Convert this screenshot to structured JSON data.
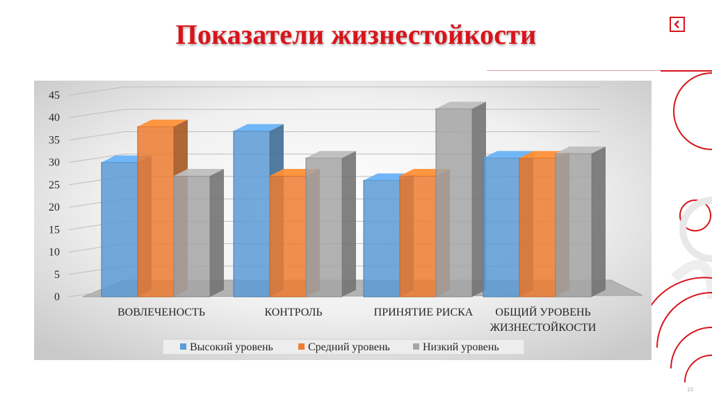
{
  "slide": {
    "title": "Показатели жизнестойкости",
    "page_number": "10",
    "accent_color": "#d8141b",
    "back_icon": "back-arrow-icon"
  },
  "chart_data": {
    "type": "bar",
    "title": "",
    "xlabel": "",
    "ylabel": "",
    "ylim": [
      0,
      45
    ],
    "y_ticks": [
      0,
      5,
      10,
      15,
      20,
      25,
      30,
      35,
      40,
      45
    ],
    "categories": [
      [
        "ВОВЛЕЧЕНОСТЬ"
      ],
      [
        "КОНТРОЛЬ"
      ],
      [
        "ПРИНЯТИЕ РИСКА"
      ],
      [
        "ОБЩИЙ УРОВЕНЬ",
        "ЖИЗНЕСТОЙКОСТИ"
      ]
    ],
    "series": [
      {
        "name": "Высокий уровень",
        "values": [
          30,
          37,
          26,
          31
        ],
        "color": "#5b9bd5"
      },
      {
        "name": "Средний уровень",
        "values": [
          38,
          27,
          27,
          31
        ],
        "color": "#ed7d31"
      },
      {
        "name": "Низкий уровень",
        "values": [
          27,
          31,
          42,
          32
        ],
        "color": "#a5a5a5"
      }
    ],
    "grid": true,
    "style": "3d-bar",
    "legend_position": "bottom"
  }
}
